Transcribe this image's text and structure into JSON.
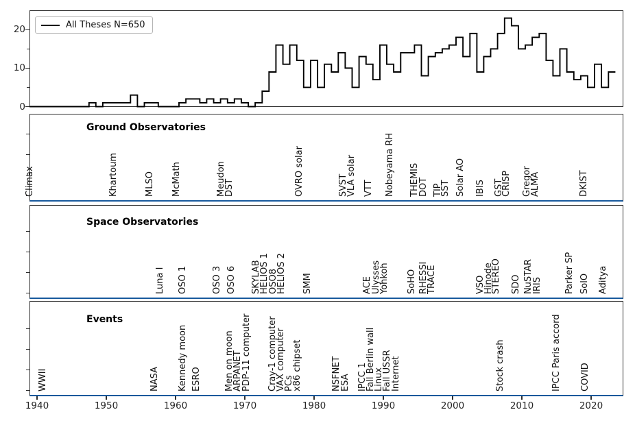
{
  "legend": {
    "label": "All Theses N=650"
  },
  "chart_data": {
    "type": "step-histogram",
    "series_label": "All Theses N=650",
    "total_n": 650,
    "x_start_year": 1940,
    "bin_width_years": 1,
    "bins_centered_on_year": true,
    "values": [
      0,
      0,
      0,
      0,
      0,
      0,
      0,
      0,
      1,
      0,
      1,
      1,
      1,
      1,
      3,
      0,
      1,
      1,
      0,
      0,
      0,
      1,
      2,
      2,
      1,
      2,
      1,
      2,
      1,
      2,
      1,
      0,
      1,
      4,
      9,
      16,
      11,
      16,
      12,
      5,
      12,
      5,
      11,
      9,
      14,
      10,
      5,
      13,
      11,
      7,
      16,
      11,
      9,
      14,
      14,
      16,
      8,
      13,
      14,
      15,
      16,
      18,
      13,
      19,
      9,
      13,
      15,
      19,
      23,
      21,
      15,
      16,
      18,
      19,
      12,
      8,
      15,
      9,
      7,
      8,
      5,
      11,
      5,
      9
    ],
    "ylim": [
      0,
      25
    ],
    "xlim_years": [
      1938.9,
      2024.6
    ],
    "yticks": [
      0,
      10,
      20
    ],
    "minor_yticks": [
      5,
      15
    ],
    "xticks": [
      1940,
      1950,
      1960,
      1970,
      1980,
      1990,
      2000,
      2010,
      2020
    ],
    "line_color": "#000000",
    "legend_position": "upper-left",
    "grid": false
  },
  "panels": {
    "ground": {
      "title": "Ground Observatories",
      "labels": [
        {
          "text": "Climax",
          "year": 1940.4
        },
        {
          "text": "Khartoum",
          "year": 1952.5
        },
        {
          "text": "MLSO",
          "year": 1957.7
        },
        {
          "text": "McMath",
          "year": 1961.6
        },
        {
          "text": "Meudon",
          "year": 1968.0
        },
        {
          "text": "DST",
          "year": 1969.2
        },
        {
          "text": "OVRO solar",
          "year": 1979.3
        },
        {
          "text": "SVST",
          "year": 1985.6
        },
        {
          "text": "VLA solar",
          "year": 1986.8
        },
        {
          "text": "VTT",
          "year": 1989.3
        },
        {
          "text": "Nobeyama RH",
          "year": 1992.4
        },
        {
          "text": "THEMIS",
          "year": 1995.9
        },
        {
          "text": "DOT",
          "year": 1997.2
        },
        {
          "text": "TIP",
          "year": 1999.3
        },
        {
          "text": "SST",
          "year": 2000.4
        },
        {
          "text": "Solar AO",
          "year": 2002.6
        },
        {
          "text": "IBIS",
          "year": 2005.4
        },
        {
          "text": "GST",
          "year": 2008.1
        },
        {
          "text": "CRISP",
          "year": 2009.2
        },
        {
          "text": "Gregor",
          "year": 2012.2
        },
        {
          "text": "ALMA",
          "year": 2013.4
        },
        {
          "text": "DKIST",
          "year": 2020.4
        }
      ]
    },
    "space": {
      "title": "Space Observatories",
      "labels": [
        {
          "text": "Luna I",
          "year": 1959.2
        },
        {
          "text": "OSO 1",
          "year": 1962.5
        },
        {
          "text": "OSO 3",
          "year": 1967.4
        },
        {
          "text": "OSO 6",
          "year": 1969.5
        },
        {
          "text": "SKYLAB",
          "year": 1973.1
        },
        {
          "text": "HELIOS 1",
          "year": 1974.3
        },
        {
          "text": "OSO8",
          "year": 1975.5
        },
        {
          "text": "HELIOS 2",
          "year": 1976.7
        },
        {
          "text": "SMM",
          "year": 1980.5
        },
        {
          "text": "ACE",
          "year": 1989.1
        },
        {
          "text": "Ulysses",
          "year": 1990.4
        },
        {
          "text": "Yohkoh",
          "year": 1991.6
        },
        {
          "text": "SoHO",
          "year": 1995.5
        },
        {
          "text": "RHESSI",
          "year": 1997.2
        },
        {
          "text": "TRACE",
          "year": 1998.4
        },
        {
          "text": "VSO",
          "year": 2005.4
        },
        {
          "text": "Hinode",
          "year": 2006.6
        },
        {
          "text": "STEREO",
          "year": 2007.7
        },
        {
          "text": "SDO",
          "year": 2010.6
        },
        {
          "text": "NuSTAR",
          "year": 2012.4
        },
        {
          "text": "IRIS",
          "year": 2013.7
        },
        {
          "text": "Parker SP",
          "year": 2018.3
        },
        {
          "text": "SolO",
          "year": 2020.5
        },
        {
          "text": "Aditya",
          "year": 2023.2
        }
      ]
    },
    "events": {
      "title": "Events",
      "labels": [
        {
          "text": "WWII",
          "year": 1942.3
        },
        {
          "text": "NASA",
          "year": 1958.4
        },
        {
          "text": "Kennedy moon",
          "year": 1962.5
        },
        {
          "text": "ESRO",
          "year": 1964.5
        },
        {
          "text": "Men on moon",
          "year": 1969.2
        },
        {
          "text": "ARPANET",
          "year": 1970.4
        },
        {
          "text": "PDP-11 computer",
          "year": 1971.7
        },
        {
          "text": "Cray-1 computer",
          "year": 1975.4
        },
        {
          "text": "VAX computer",
          "year": 1976.6
        },
        {
          "text": "PCs",
          "year": 1977.8
        },
        {
          "text": "x86 chipset",
          "year": 1979.0
        },
        {
          "text": "NSFNET",
          "year": 1984.7
        },
        {
          "text": "ESA",
          "year": 1985.9
        },
        {
          "text": "IPCC 1",
          "year": 1988.4
        },
        {
          "text": "Fall Berlin wall",
          "year": 1989.6
        },
        {
          "text": "Linux",
          "year": 1990.8
        },
        {
          "text": "Fall USSR",
          "year": 1992.0
        },
        {
          "text": "Internet",
          "year": 1993.3
        },
        {
          "text": "Stock crash",
          "year": 2008.3
        },
        {
          "text": "IPCC Paris accord",
          "year": 2016.4
        },
        {
          "text": "COVID",
          "year": 2020.6
        }
      ]
    }
  },
  "colors": {
    "separator_blue": "#17599c",
    "spine": "#2e2e2e",
    "line": "#000000",
    "text": "#1a1a1a",
    "background": "#ffffff"
  }
}
